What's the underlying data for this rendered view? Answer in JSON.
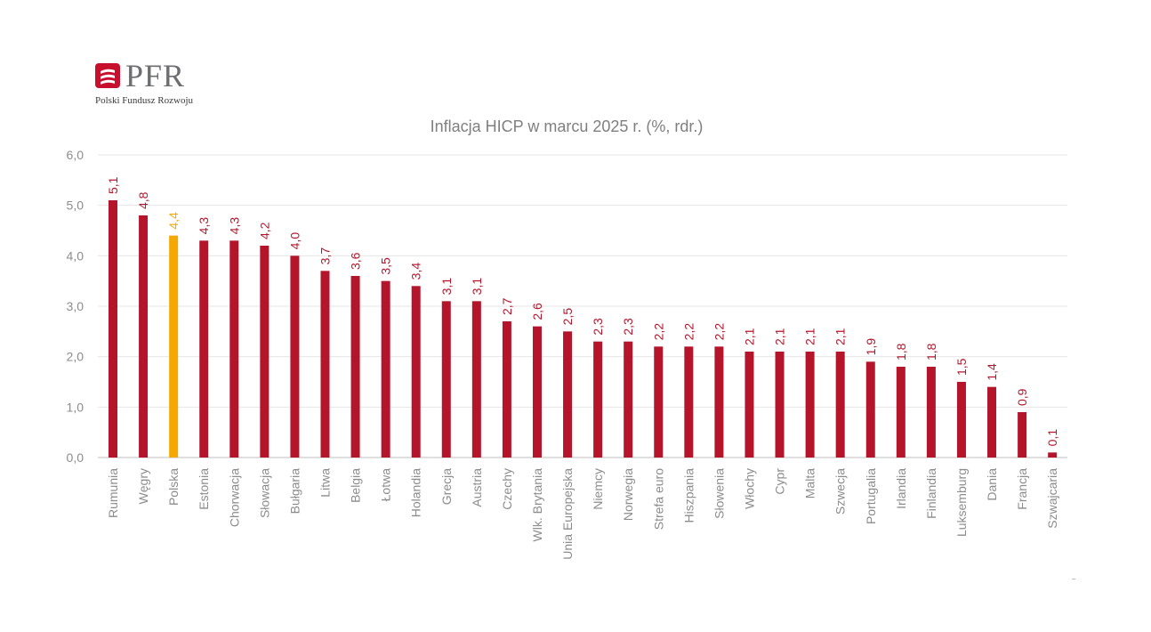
{
  "logo": {
    "name": "PFR",
    "subtitle": "Polski Fundusz Rozwoju",
    "color": "#c8102e"
  },
  "chart_data": {
    "type": "bar",
    "title": "Inflacja HICP w marcu 2025 r. (%, rdr.)",
    "xlabel": "",
    "ylabel": "",
    "ylim": [
      0,
      6
    ],
    "yticks": [
      "0,0",
      "1,0",
      "2,0",
      "3,0",
      "4,0",
      "5,0",
      "6,0"
    ],
    "grid": true,
    "legend": "none",
    "colors": {
      "default": "#b5152b",
      "highlight": "#f5a800",
      "label": "#b5152b",
      "highlight_label": "#f5a800",
      "tick": "#8c8c8c"
    },
    "highlight": "Polska",
    "categories": [
      "Rumunia",
      "Węgry",
      "Polska",
      "Estonia",
      "Chorwacja",
      "Słowacja",
      "Bułgaria",
      "Litwa",
      "Belgia",
      "Łotwa",
      "Holandia",
      "Grecja",
      "Austria",
      "Czechy",
      "Wlk. Brytania",
      "Unia Europejska",
      "Niemcy",
      "Norwegia",
      "Strefa euro",
      "Hiszpania",
      "Słowenia",
      "Włochy",
      "Cypr",
      "Malta",
      "Szwecja",
      "Portugalia",
      "Irlandia",
      "Finlandia",
      "Luksemburg",
      "Dania",
      "Francja",
      "Szwajcaria"
    ],
    "values": [
      5.1,
      4.8,
      4.4,
      4.3,
      4.3,
      4.2,
      4.0,
      3.7,
      3.6,
      3.5,
      3.4,
      3.1,
      3.1,
      2.7,
      2.6,
      2.5,
      2.3,
      2.3,
      2.2,
      2.2,
      2.2,
      2.1,
      2.1,
      2.1,
      2.1,
      1.9,
      1.8,
      1.8,
      1.5,
      1.4,
      0.9,
      0.1
    ],
    "data_labels": [
      "5,1",
      "4,8",
      "4,4",
      "4,3",
      "4,3",
      "4,2",
      "4,0",
      "3,7",
      "3,6",
      "3,5",
      "3,4",
      "3,1",
      "3,1",
      "2,7",
      "2,6",
      "2,5",
      "2,3",
      "2,3",
      "2,2",
      "2,2",
      "2,2",
      "2,1",
      "2,1",
      "2,1",
      "2,1",
      "1,9",
      "1,8",
      "1,8",
      "1,5",
      "1,4",
      "0,9",
      "0,1"
    ]
  }
}
